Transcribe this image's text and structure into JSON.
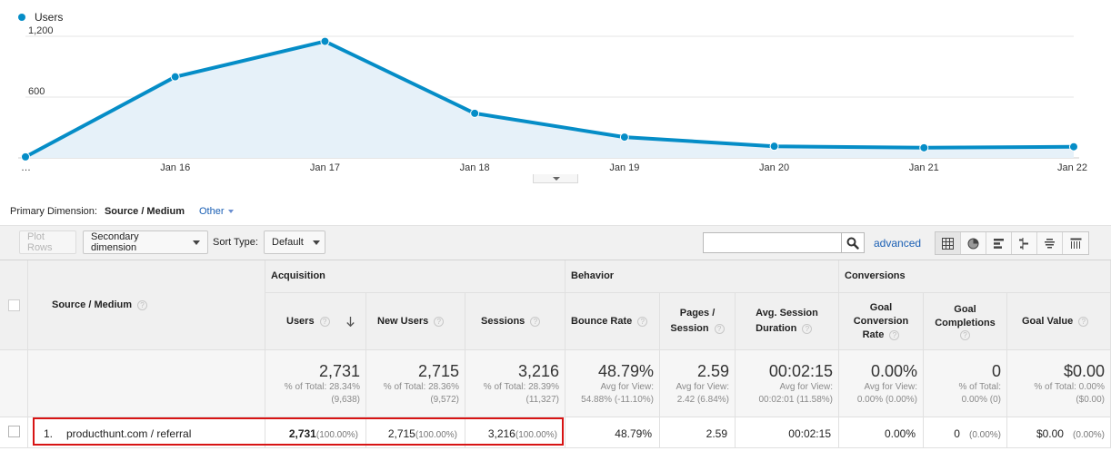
{
  "chart_data": {
    "type": "area",
    "series": [
      {
        "name": "Users",
        "color": "#058dc7",
        "values": [
          10,
          800,
          1150,
          440,
          205,
          115,
          100,
          110
        ]
      }
    ],
    "categories": [
      "…",
      "Jan 16",
      "Jan 17",
      "Jan 18",
      "Jan 19",
      "Jan 20",
      "Jan 21",
      "Jan 22"
    ],
    "yticks": [
      "1,200",
      "600"
    ],
    "ylim": [
      0,
      1200
    ],
    "grid": true,
    "legend": "top-left"
  },
  "primary_dimension": {
    "label": "Primary Dimension:",
    "current": "Source / Medium",
    "other": "Other"
  },
  "toolbar": {
    "plot_rows": "Plot Rows",
    "secondary_dimension": "Secondary dimension",
    "sort_type_label": "Sort Type:",
    "sort_type_value": "Default",
    "search_placeholder": "",
    "advanced": "advanced",
    "views": [
      "table-view-icon",
      "pie-view-icon",
      "performance-view-icon",
      "comparison-view-icon",
      "term-cloud-view-icon",
      "pivot-view-icon"
    ]
  },
  "table": {
    "dimension_header": "Source / Medium",
    "groups": [
      "Acquisition",
      "Behavior",
      "Conversions"
    ],
    "columns": [
      {
        "label": "Users"
      },
      {
        "label": "New Users"
      },
      {
        "label": "Sessions"
      },
      {
        "label": "Bounce Rate"
      },
      {
        "line1": "Pages /",
        "line2": "Session"
      },
      {
        "line1": "Avg. Session",
        "line2": "Duration"
      },
      {
        "line1": "Goal",
        "line2": "Conversion",
        "line3": "Rate"
      },
      {
        "line1": "Goal",
        "line2": "Completions"
      },
      {
        "label": "Goal Value"
      }
    ],
    "totals": [
      {
        "big": "2,731",
        "sub1": "% of Total: 28.34%",
        "sub2": "(9,638)"
      },
      {
        "big": "2,715",
        "sub1": "% of Total: 28.36%",
        "sub2": "(9,572)"
      },
      {
        "big": "3,216",
        "sub1": "% of Total: 28.39%",
        "sub2": "(11,327)"
      },
      {
        "big": "48.79%",
        "sub1": "Avg for View:",
        "sub2": "54.88% (-11.10%)"
      },
      {
        "big": "2.59",
        "sub1": "Avg for View:",
        "sub2": "2.42 (6.84%)"
      },
      {
        "big": "00:02:15",
        "sub1": "Avg for View:",
        "sub2": "00:02:01 (11.58%)"
      },
      {
        "big": "0.00%",
        "sub1": "Avg for View:",
        "sub2": "0.00% (0.00%)"
      },
      {
        "big": "0",
        "sub1": "% of Total:",
        "sub2": "0.00% (0)"
      },
      {
        "big": "$0.00",
        "sub1": "% of Total: 0.00%",
        "sub2": "($0.00)"
      }
    ],
    "row": {
      "index": "1.",
      "dimension": "producthunt.com / referral",
      "users": "2,731",
      "users_pct": "(100.00%)",
      "new_users": "2,715",
      "new_users_pct": "(100.00%)",
      "sessions": "3,216",
      "sessions_pct": "(100.00%)",
      "bounce_rate": "48.79%",
      "pages_session": "2.59",
      "avg_duration": "00:02:15",
      "goal_conv_rate": "0.00%",
      "goal_completions": "0",
      "goal_completions_pct": "(0.00%)",
      "goal_value": "$0.00",
      "goal_value_pct": "(0.00%)"
    }
  }
}
